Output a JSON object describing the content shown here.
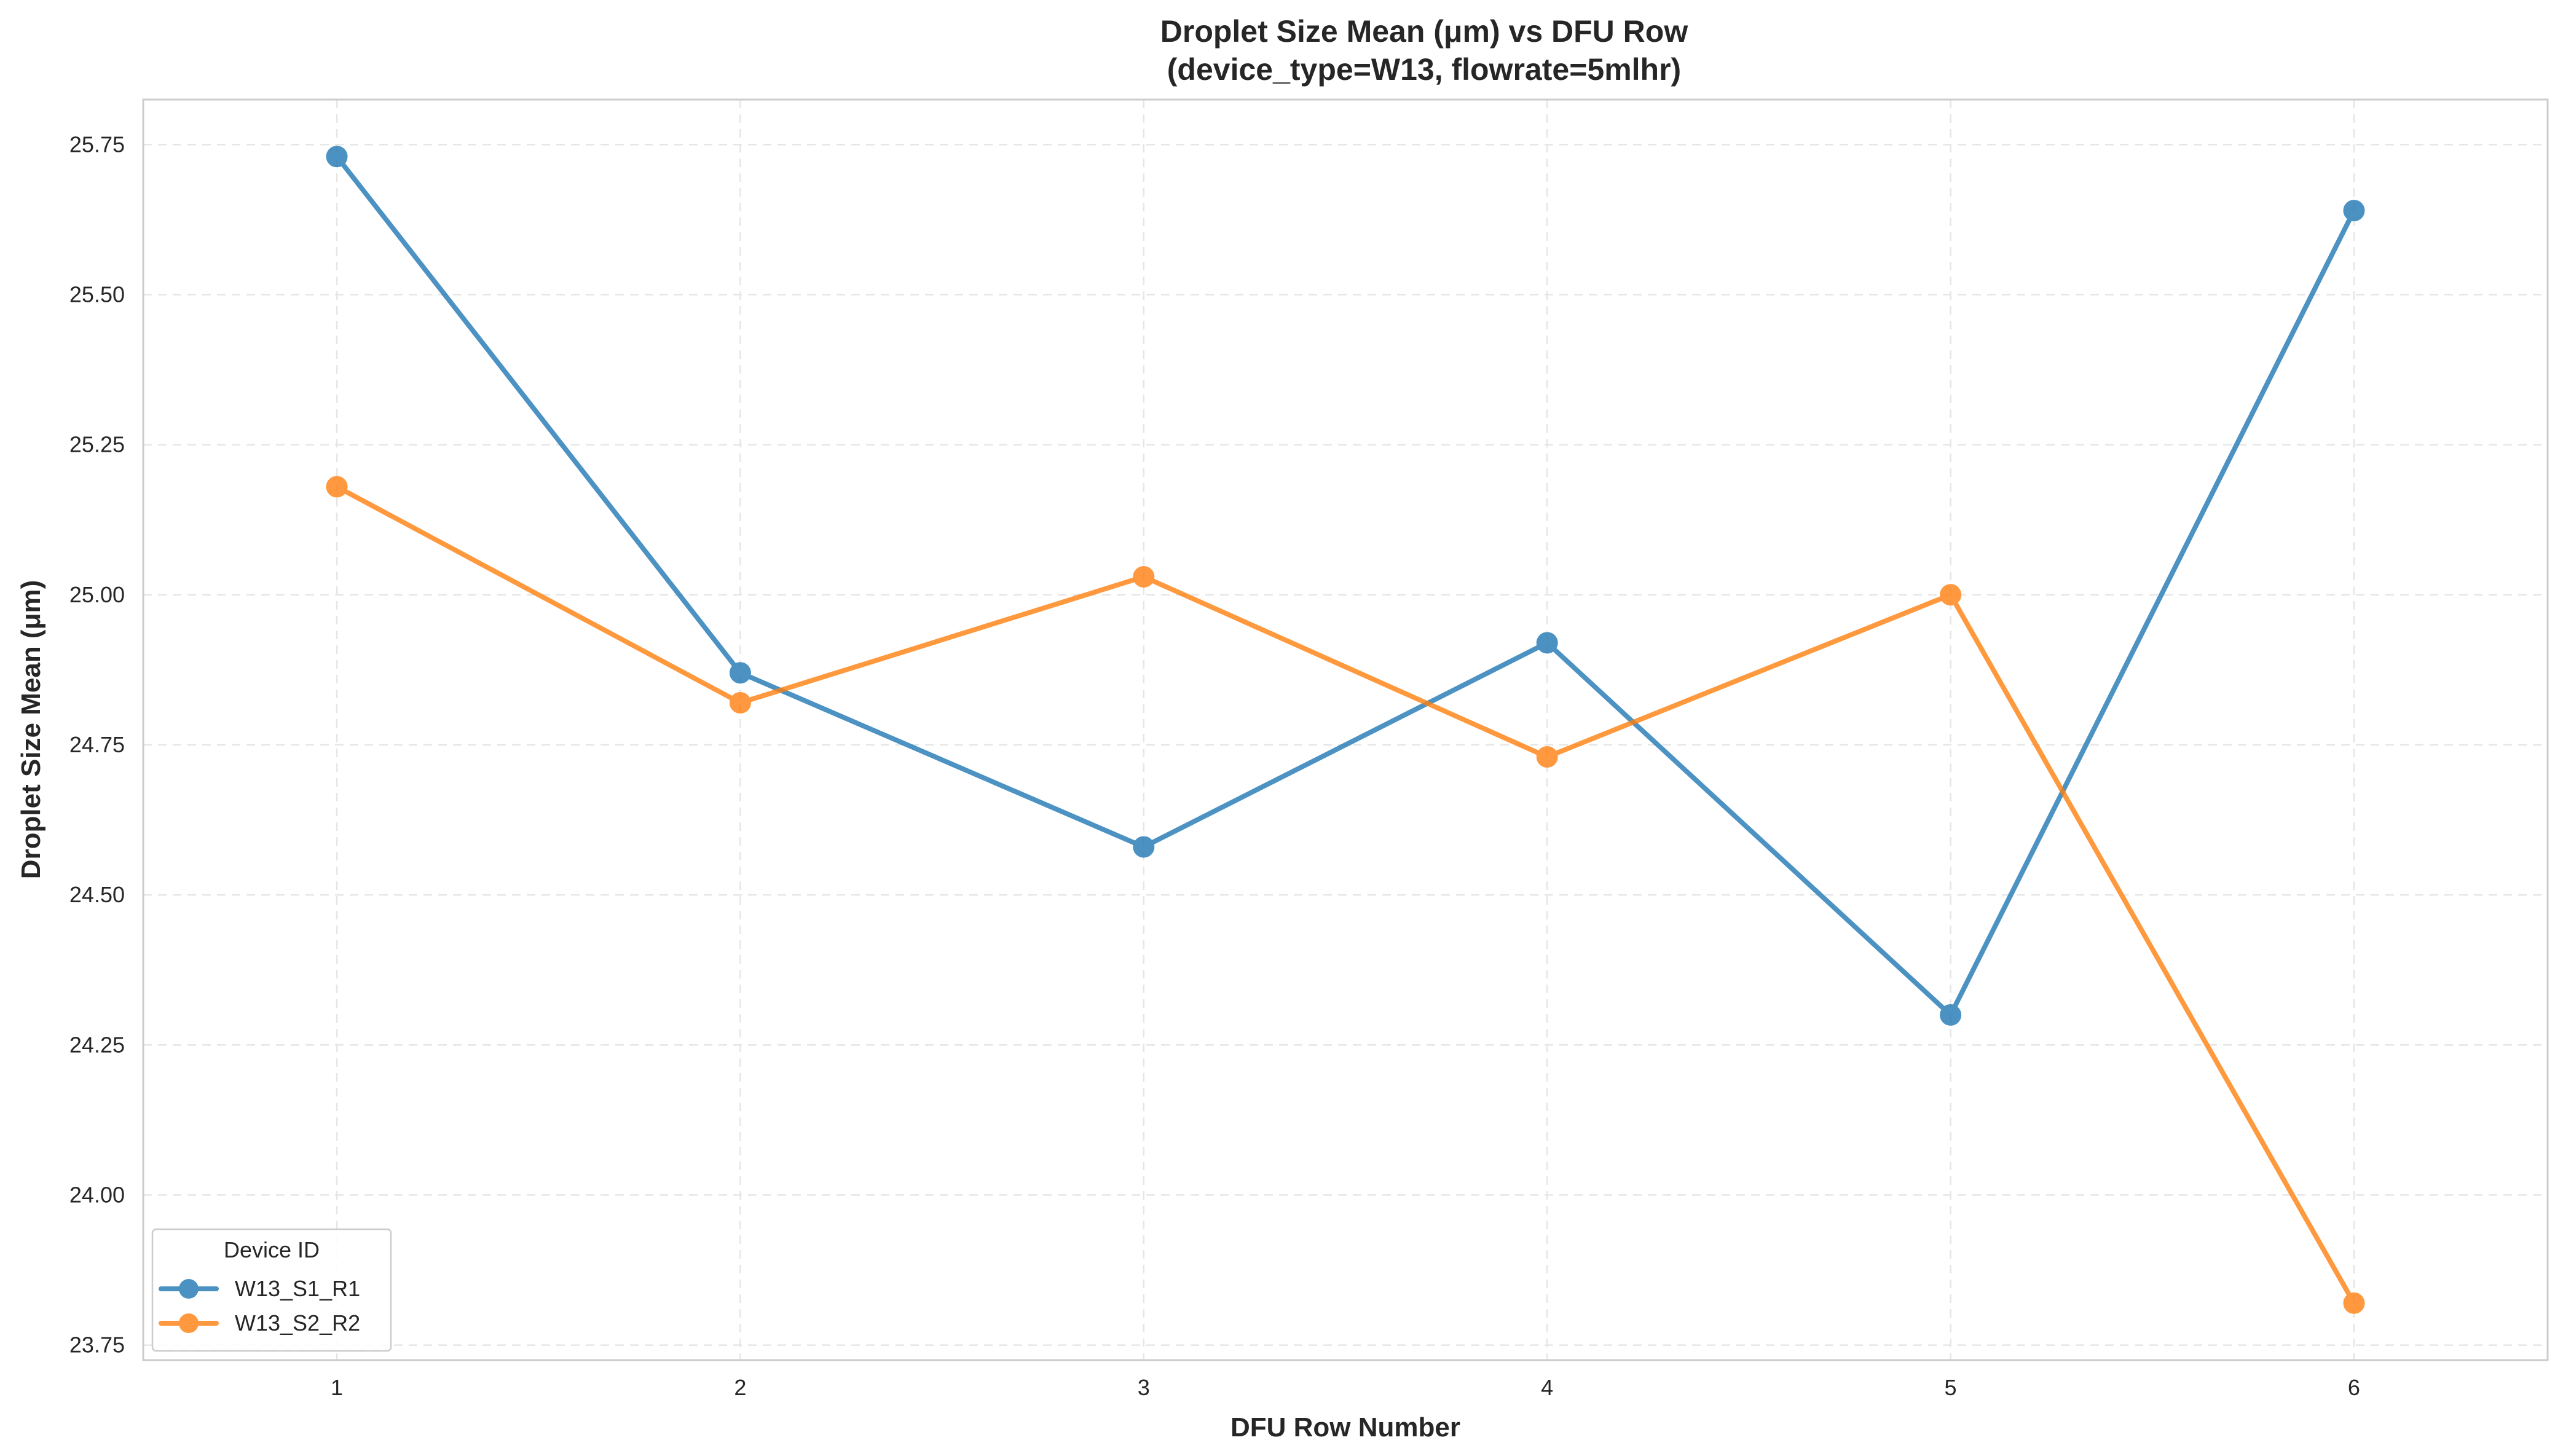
{
  "chart_data": {
    "type": "line",
    "title_line1": "Droplet Size Mean (μm) vs DFU Row",
    "title_line2": "(device_type=W13, flowrate=5mlhr)",
    "xlabel": "DFU Row Number",
    "ylabel": "Droplet Size Mean (μm)",
    "x": [
      1,
      2,
      3,
      4,
      5,
      6
    ],
    "xlim": [
      0.52,
      6.48
    ],
    "ylim": [
      23.725,
      25.825
    ],
    "x_ticks": [
      1,
      2,
      3,
      4,
      5,
      6
    ],
    "y_ticks": [
      23.75,
      24.0,
      24.25,
      24.5,
      24.75,
      25.0,
      25.25,
      25.5,
      25.75
    ],
    "y_tick_labels": [
      "23.75",
      "24.00",
      "24.25",
      "24.50",
      "24.75",
      "25.00",
      "25.25",
      "25.50",
      "25.75"
    ],
    "grid": true,
    "legend": {
      "title": "Device ID",
      "placement": "lower-left"
    },
    "series": [
      {
        "name": "W13_S1_R1",
        "color": "#1f77b4",
        "values": [
          25.73,
          24.87,
          24.58,
          24.92,
          24.3,
          25.64
        ]
      },
      {
        "name": "W13_S2_R2",
        "color": "#ff7f0e",
        "values": [
          25.18,
          24.82,
          25.03,
          24.73,
          25.0,
          23.82
        ]
      }
    ]
  }
}
